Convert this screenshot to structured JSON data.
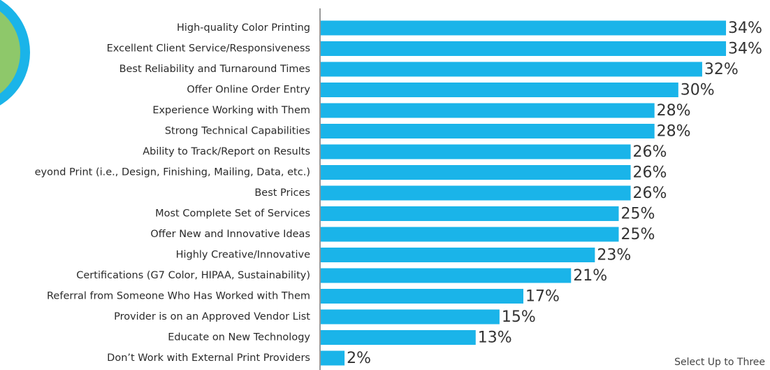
{
  "chart_data": {
    "type": "bar",
    "orientation": "horizontal",
    "categories": [
      "High-quality Color Printing",
      "Excellent Client Service/Responsiveness",
      "Best Reliability and Turnaround Times",
      "Offer Online Order Entry",
      "Experience Working with Them",
      "Strong Technical Capabilities",
      "Ability to Track/Report on Results",
      "eyond Print (i.e., Design, Finishing, Mailing, Data, etc.)",
      "Best Prices",
      "Most Complete Set of Services",
      "Offer New and Innovative Ideas",
      "Highly Creative/Innovative",
      "Certifications (G7 Color, HIPAA, Sustainability)",
      "Referral from Someone Who Has Worked with Them",
      "Provider is on an Approved Vendor List",
      "Educate on New Technology",
      "Don’t Work with External Print Providers"
    ],
    "values": [
      34,
      34,
      32,
      30,
      28,
      28,
      26,
      26,
      26,
      25,
      25,
      23,
      21,
      17,
      15,
      13,
      2
    ],
    "value_labels": [
      "34%",
      "34%",
      "32%",
      "30%",
      "28%",
      "28%",
      "26%",
      "26%",
      "26%",
      "25%",
      "25%",
      "23%",
      "21%",
      "17%",
      "15%",
      "13%",
      "2%"
    ],
    "color": "#1ab4e9",
    "note": "Select Up to Three"
  }
}
